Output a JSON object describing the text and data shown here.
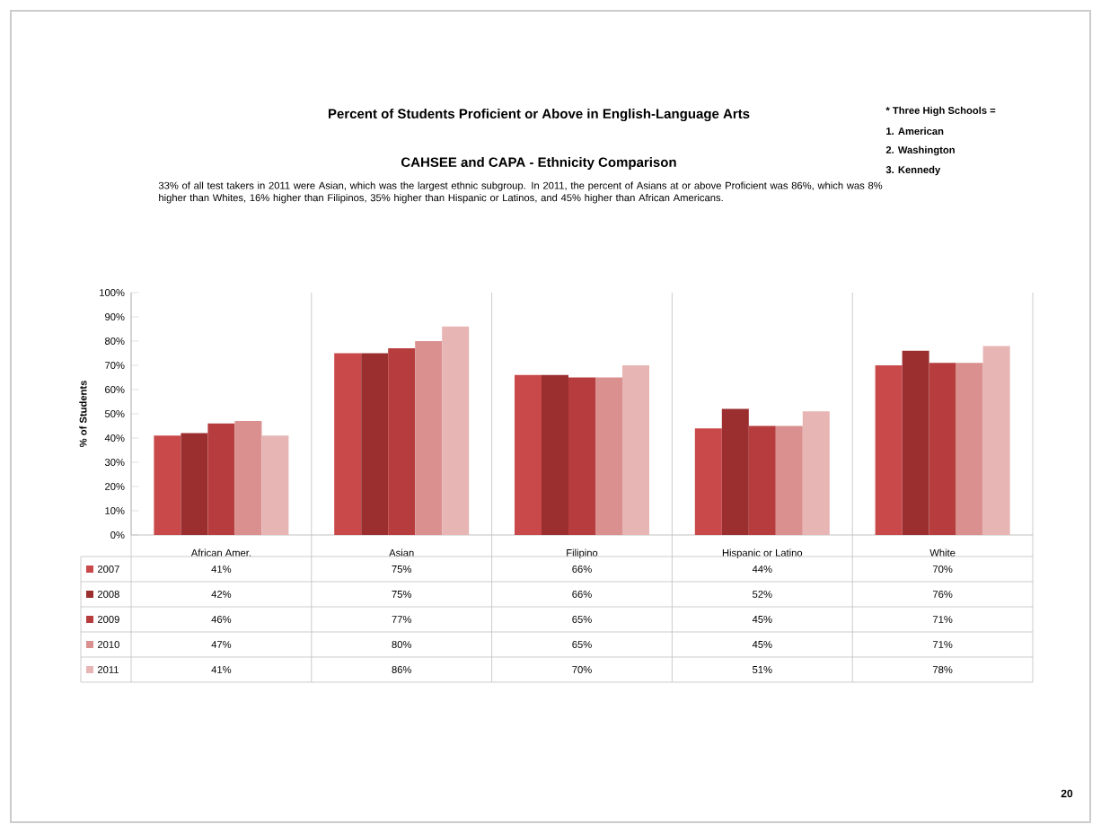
{
  "chart_data": {
    "type": "bar",
    "title": "Percent of Students Proficient or Above in English-Language Arts",
    "subtitle": "CAHSEE and CAPA - Ethnicity Comparison",
    "annotations": [
      "33% of all test takers in 2011 were Asian, which was the largest ethnic subgroup. In 2011, the percent of Asians at or above Proficient was 86%, which was 8% higher than Whites, 16% higher than Filipinos, 35% higher than Hispanic or Latinos, and 45% higher than African Americans.",
      "* Three High Schools =",
      "1. American",
      "2. Washington",
      "3. Kennedy",
      "20"
    ],
    "ylabel": "% of Students",
    "categories": [
      "African Amer.",
      "Asian",
      "Filipino",
      "Hispanic or Latino",
      "White"
    ],
    "series": [
      {
        "name": "2007",
        "color": "#c9484a",
        "values": [
          41,
          75,
          66,
          44,
          70
        ],
        "value_labels": [
          "41%",
          "75%",
          "66%",
          "44%",
          "70%"
        ]
      },
      {
        "name": "2008",
        "color": "#9b2f30",
        "values": [
          42,
          75,
          66,
          52,
          76
        ],
        "value_labels": [
          "42%",
          "75%",
          "66%",
          "52%",
          "76%"
        ]
      },
      {
        "name": "2009",
        "color": "#b63c3d",
        "values": [
          46,
          77,
          65,
          45,
          71
        ],
        "value_labels": [
          "46%",
          "77%",
          "65%",
          "45%",
          "71%"
        ]
      },
      {
        "name": "2010",
        "color": "#d9908f",
        "values": [
          47,
          80,
          65,
          45,
          71
        ],
        "value_labels": [
          "47%",
          "80%",
          "65%",
          "45%",
          "71%"
        ]
      },
      {
        "name": "2011",
        "color": "#e6b5b4",
        "values": [
          41,
          86,
          70,
          51,
          78
        ],
        "value_labels": [
          "41%",
          "86%",
          "70%",
          "51%",
          "78%"
        ]
      }
    ],
    "ylim": [
      0,
      100
    ],
    "yticks": [
      {
        "value": 0,
        "label": "0%"
      },
      {
        "value": 10,
        "label": "10%"
      },
      {
        "value": 20,
        "label": "20%"
      },
      {
        "value": 30,
        "label": "30%"
      },
      {
        "value": 40,
        "label": "40%"
      },
      {
        "value": 50,
        "label": "50%"
      },
      {
        "value": 60,
        "label": "60%"
      },
      {
        "value": 70,
        "label": "70%"
      },
      {
        "value": 80,
        "label": "80%"
      },
      {
        "value": 90,
        "label": "90%"
      },
      {
        "value": 100,
        "label": "100%"
      }
    ],
    "grid": false,
    "legend": "bottom"
  }
}
